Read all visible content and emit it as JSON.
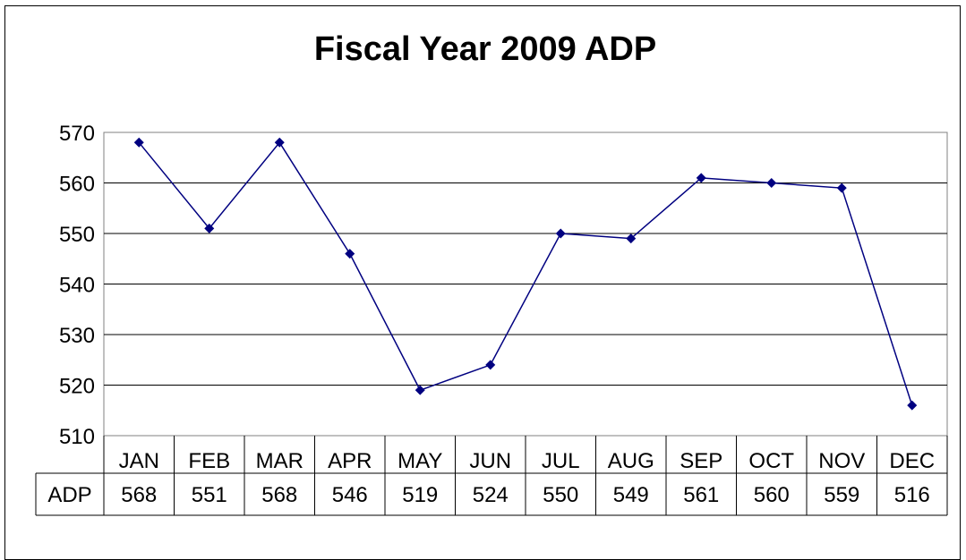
{
  "chart_data": {
    "type": "line",
    "title": "Fiscal Year 2009 ADP",
    "categories": [
      "JAN",
      "FEB",
      "MAR",
      "APR",
      "MAY",
      "JUN",
      "JUL",
      "AUG",
      "SEP",
      "OCT",
      "NOV",
      "DEC"
    ],
    "series": [
      {
        "name": "ADP",
        "values": [
          568,
          551,
          568,
          546,
          519,
          524,
          550,
          549,
          561,
          560,
          559,
          516
        ]
      }
    ],
    "yticks": [
      "570",
      "560",
      "550",
      "540",
      "530",
      "520",
      "510"
    ],
    "ylim": [
      510,
      570
    ],
    "grid": true,
    "data_table": true,
    "colors": {
      "line": "#000080",
      "marker": "#000080",
      "plot_background": "#ffffff"
    }
  }
}
